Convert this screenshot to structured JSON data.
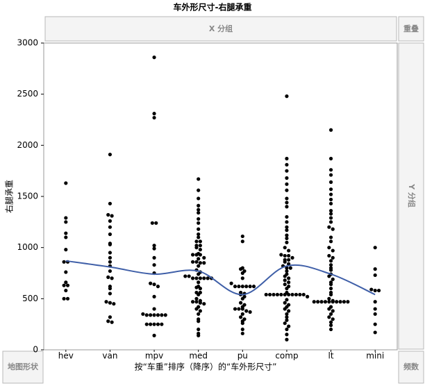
{
  "chart_data": {
    "type": "scatter",
    "title": "车外形尺寸-右腿承重",
    "y_label": "右腿承重",
    "x_label": "按“车重”排序（降序）的“车外形尺寸”",
    "panels": {
      "x_group": "X 分组",
      "overlap": "重叠",
      "y_group": "Y 分组",
      "map_shape": "地图形状",
      "frequency": "频数"
    },
    "categories": [
      "hev",
      "van",
      "mpv",
      "med",
      "pu",
      "comp",
      "lt",
      "mini"
    ],
    "point_color": "#000000",
    "values": [
      [
        1630,
        1290,
        1250,
        1140,
        1100,
        980,
        860,
        860,
        760,
        660,
        630,
        630,
        580,
        500,
        500
      ],
      [
        1910,
        1430,
        1320,
        1310,
        1260,
        1200,
        1130,
        1040,
        1030,
        950,
        900,
        860,
        820,
        770,
        710,
        700,
        620,
        600,
        550,
        470,
        460,
        450,
        320,
        280,
        270
      ],
      [
        2860,
        2310,
        2270,
        1240,
        1240,
        1020,
        990,
        900,
        830,
        750,
        650,
        640,
        620,
        520,
        400,
        350,
        340,
        340,
        340,
        340,
        340,
        340,
        250,
        250,
        250,
        250,
        250,
        140
      ],
      [
        1670,
        1560,
        1480,
        1410,
        1370,
        1340,
        1280,
        1240,
        1180,
        1130,
        1100,
        1060,
        1060,
        1020,
        1020,
        1000,
        980,
        940,
        930,
        930,
        930,
        900,
        890,
        860,
        860,
        850,
        850,
        820,
        780,
        760,
        740,
        720,
        720,
        700,
        700,
        700,
        700,
        700,
        700,
        660,
        620,
        610,
        600,
        560,
        560,
        540,
        500,
        480,
        470,
        470,
        460,
        450,
        420,
        400,
        380,
        350,
        300,
        280,
        200,
        160,
        140
      ],
      [
        1110,
        1060,
        800,
        790,
        770,
        750,
        700,
        650,
        620,
        620,
        620,
        620,
        620,
        620,
        560,
        550,
        540,
        520,
        500,
        460,
        440,
        420,
        400,
        400,
        400,
        380,
        370,
        350,
        320,
        300,
        280,
        260,
        200,
        160
      ],
      [
        2480,
        1870,
        1810,
        1750,
        1680,
        1620,
        1560,
        1480,
        1440,
        1400,
        1300,
        1250,
        1200,
        1170,
        1120,
        1090,
        1050,
        1000,
        970,
        930,
        920,
        920,
        900,
        880,
        880,
        860,
        840,
        820,
        800,
        800,
        770,
        740,
        720,
        700,
        680,
        660,
        640,
        620,
        600,
        560,
        540,
        540,
        540,
        540,
        540,
        540,
        540,
        540,
        540,
        540,
        540,
        520,
        490,
        460,
        440,
        420,
        400,
        380,
        350,
        320,
        290,
        260,
        230,
        200,
        150,
        100
      ],
      [
        2150,
        1870,
        1760,
        1710,
        1640,
        1570,
        1520,
        1470,
        1430,
        1360,
        1330,
        1290,
        1250,
        1200,
        1180,
        1100,
        1060,
        1000,
        970,
        920,
        900,
        870,
        830,
        800,
        780,
        740,
        720,
        690,
        660,
        640,
        600,
        560,
        540,
        500,
        480,
        470,
        470,
        470,
        470,
        470,
        470,
        470,
        470,
        470,
        470,
        420,
        400,
        380,
        350,
        320,
        300,
        270,
        240,
        200
      ],
      [
        1000,
        790,
        730,
        590,
        580,
        580,
        470,
        400,
        350,
        250,
        170
      ]
    ],
    "smoother_values": [
      870,
      810,
      740,
      770,
      540,
      820,
      740,
      540
    ],
    "smoother_color": "#3f5fa8",
    "ylim": [
      0,
      3000
    ],
    "yticks": [
      0,
      500,
      1000,
      1500,
      2000,
      2500,
      3000
    ]
  }
}
